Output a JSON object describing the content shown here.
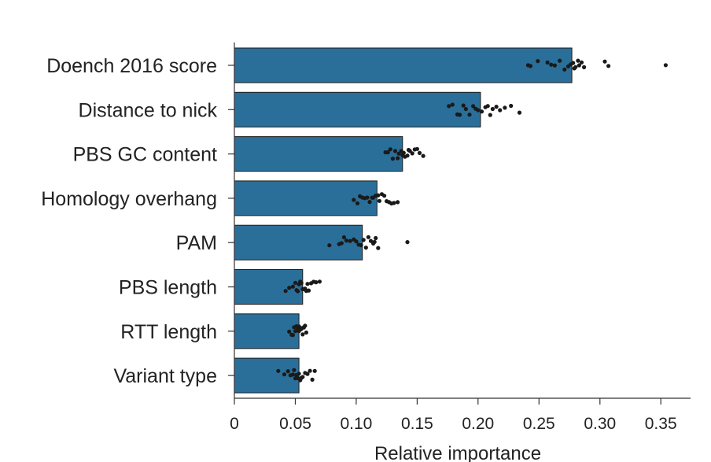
{
  "chart_data": {
    "type": "bar",
    "orientation": "horizontal",
    "title": "",
    "xlabel": "Relative importance",
    "ylabel": "",
    "xlim": [
      0,
      0.37
    ],
    "grid": false,
    "x_ticks": [
      0,
      0.05,
      0.1,
      0.15,
      0.2,
      0.25,
      0.3,
      0.35
    ],
    "x_tick_labels": [
      "0",
      "0.05",
      "0.10",
      "0.15",
      "0.20",
      "0.25",
      "0.30",
      "0.35"
    ],
    "categories": [
      "Doench 2016 score",
      "Distance to nick",
      "PBS GC content",
      "Homology overhang",
      "PAM",
      "PBS length",
      "RTT length",
      "Variant type"
    ],
    "values": [
      0.277,
      0.202,
      0.138,
      0.117,
      0.105,
      0.056,
      0.053,
      0.053
    ],
    "points": [
      [
        0.241,
        0.243,
        0.249,
        0.257,
        0.26,
        0.263,
        0.267,
        0.271,
        0.274,
        0.276,
        0.278,
        0.279,
        0.28,
        0.282,
        0.283,
        0.285,
        0.287,
        0.304,
        0.307,
        0.354
      ],
      [
        0.176,
        0.179,
        0.183,
        0.185,
        0.188,
        0.19,
        0.193,
        0.196,
        0.198,
        0.2,
        0.203,
        0.206,
        0.208,
        0.21,
        0.212,
        0.215,
        0.218,
        0.222,
        0.227,
        0.234
      ],
      [
        0.124,
        0.126,
        0.128,
        0.13,
        0.132,
        0.134,
        0.135,
        0.137,
        0.138,
        0.139,
        0.14,
        0.142,
        0.143,
        0.144,
        0.146,
        0.148,
        0.15,
        0.152,
        0.155
      ],
      [
        0.098,
        0.101,
        0.103,
        0.105,
        0.107,
        0.109,
        0.111,
        0.113,
        0.114,
        0.116,
        0.118,
        0.119,
        0.121,
        0.123,
        0.125,
        0.127,
        0.129,
        0.131,
        0.134
      ],
      [
        0.078,
        0.086,
        0.088,
        0.09,
        0.092,
        0.095,
        0.098,
        0.1,
        0.102,
        0.104,
        0.106,
        0.108,
        0.11,
        0.112,
        0.114,
        0.115,
        0.116,
        0.118,
        0.142
      ],
      [
        0.042,
        0.045,
        0.048,
        0.05,
        0.051,
        0.052,
        0.053,
        0.054,
        0.055,
        0.056,
        0.057,
        0.058,
        0.059,
        0.06,
        0.061,
        0.063,
        0.065,
        0.067,
        0.07
      ],
      [
        0.045,
        0.047,
        0.048,
        0.049,
        0.05,
        0.051,
        0.052,
        0.053,
        0.053,
        0.054,
        0.055,
        0.055,
        0.056,
        0.057,
        0.057,
        0.058,
        0.059
      ],
      [
        0.036,
        0.041,
        0.044,
        0.046,
        0.048,
        0.049,
        0.05,
        0.051,
        0.052,
        0.053,
        0.054,
        0.055,
        0.056,
        0.058,
        0.06,
        0.062,
        0.064,
        0.066
      ]
    ],
    "bar_color": "#2a6f9a",
    "bar_edge_color": "#1a1a1a",
    "point_color": "#1a1a1a",
    "axis_color": "#333333"
  }
}
